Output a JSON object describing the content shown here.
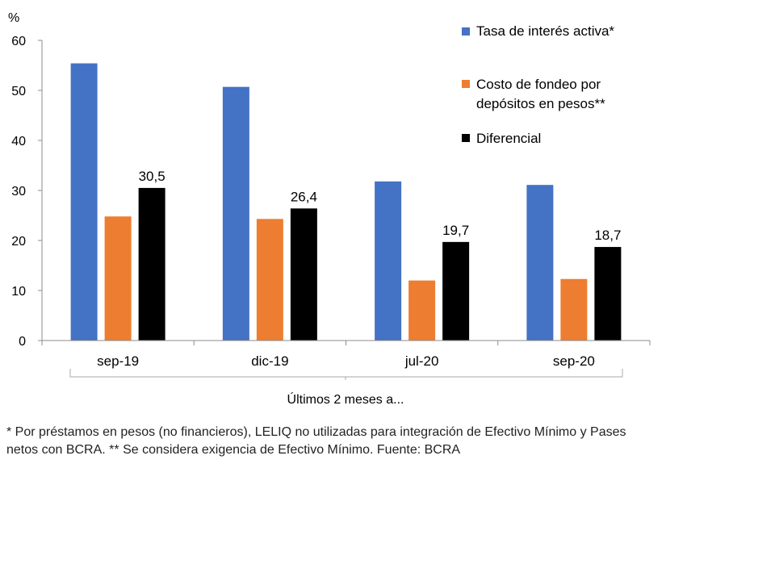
{
  "chart_data": {
    "type": "bar",
    "unit_label": "%",
    "categories": [
      "sep-19",
      "dic-19",
      "jul-20",
      "sep-20"
    ],
    "series": [
      {
        "name": "Tasa de interés activa*",
        "color": "#4472C4",
        "values": [
          55.4,
          50.7,
          31.8,
          31.1
        ]
      },
      {
        "name": "Costo de fondeo por depósitos en pesos**",
        "color": "#ED7D31",
        "values": [
          24.8,
          24.3,
          12.0,
          12.3
        ]
      },
      {
        "name": "Diferencial",
        "color": "#000000",
        "values": [
          30.5,
          26.4,
          19.7,
          18.7
        ]
      }
    ],
    "data_labels": {
      "series": "Diferencial",
      "labels": [
        "30,5",
        "26,4",
        "19,7",
        "18,7"
      ]
    },
    "yticks": [
      "0",
      "10",
      "20",
      "30",
      "40",
      "50",
      "60"
    ],
    "ylim": [
      0,
      60
    ],
    "bracket_label": "Últimos 2 meses a...",
    "legend_position": "top-right",
    "grid": false
  },
  "footnote": "* Por préstamos en pesos (no financieros), LELIQ no utilizadas para integración de Efectivo Mínimo y Pases netos con BCRA. ** Se considera exigencia de Efectivo Mínimo. Fuente: BCRA"
}
